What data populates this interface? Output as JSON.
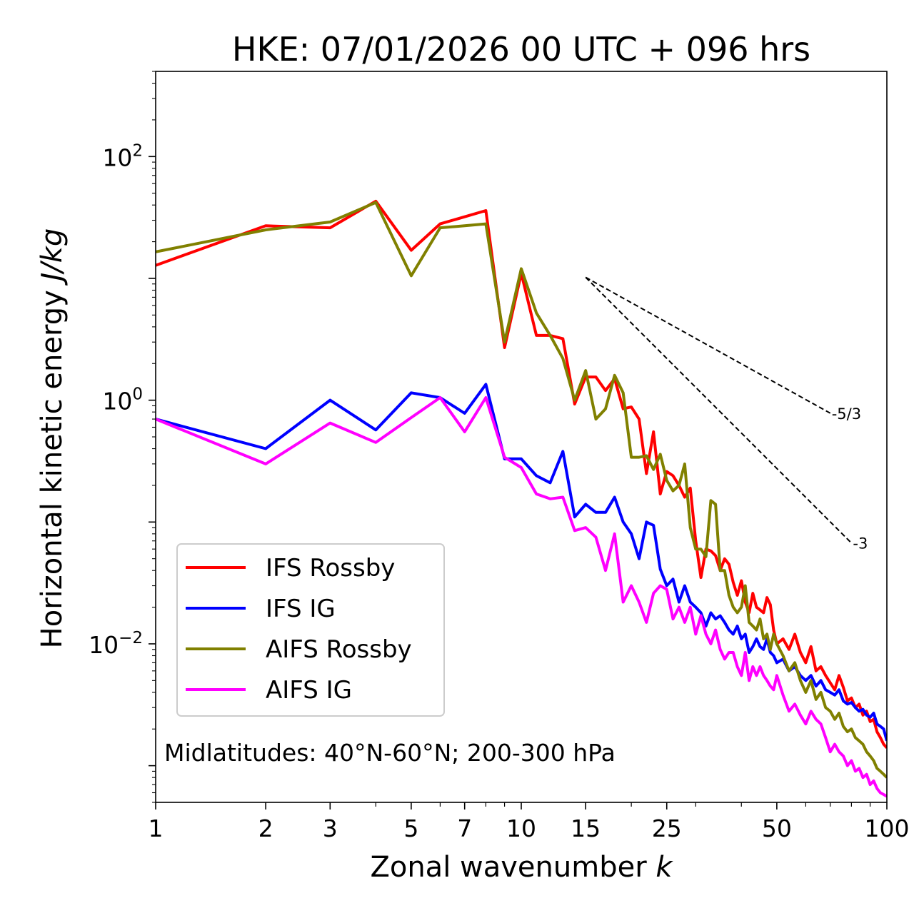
{
  "chart_data": {
    "type": "line",
    "title": "HKE: 07/01/2026 00 UTC + 096 hrs",
    "xlabel": "Zonal wavenumber",
    "xlabel_symbol": "k",
    "ylabel": "Horizontal kinetic energy",
    "ylabel_units": "J/kg",
    "xscale": "log",
    "yscale": "log",
    "xlim": [
      1,
      100
    ],
    "ylim": [
      0.0005,
      500
    ],
    "xticks": [
      {
        "value": 1,
        "label": "1"
      },
      {
        "value": 2,
        "label": "2"
      },
      {
        "value": 3,
        "label": "3"
      },
      {
        "value": 5,
        "label": "5"
      },
      {
        "value": 7,
        "label": "7"
      },
      {
        "value": 10,
        "label": "10"
      },
      {
        "value": 15,
        "label": "15"
      },
      {
        "value": 25,
        "label": "25"
      },
      {
        "value": 50,
        "label": "50"
      },
      {
        "value": 100,
        "label": "100"
      }
    ],
    "yticks": [
      {
        "value": 0.01,
        "label_base": "10",
        "label_exp": "−2"
      },
      {
        "value": 1,
        "label_base": "10",
        "label_exp": "0"
      },
      {
        "value": 100,
        "label_base": "10",
        "label_exp": "2"
      }
    ],
    "annotation": "Midlatitudes: 40°N-60°N; 200-300 hPa",
    "legend_position": "lower-left",
    "reference_slopes": [
      {
        "label": "-5/3",
        "slope": -1.6667,
        "x_start": 15,
        "x_end": 70,
        "y_start": 10.2
      },
      {
        "label": "-3",
        "slope": -3,
        "x_start": 15,
        "x_end": 80,
        "y_start": 10.2
      }
    ],
    "series": [
      {
        "name": "IFS Rossby",
        "color": "#ff0000",
        "x": [
          1,
          2,
          3,
          4,
          5,
          6,
          7,
          8,
          9,
          10,
          11,
          12,
          13,
          14,
          15,
          16,
          17,
          18,
          19,
          20,
          21,
          22,
          23,
          24,
          25,
          26,
          27,
          28,
          29,
          30,
          31,
          32,
          33,
          34,
          35,
          36,
          37,
          38,
          39,
          40,
          41,
          42,
          43,
          44,
          45,
          46,
          47,
          48,
          49,
          50,
          52,
          54,
          56,
          58,
          60,
          62,
          64,
          66,
          68,
          70,
          72,
          74,
          76,
          78,
          80,
          82,
          84,
          86,
          88,
          90,
          92,
          94,
          96,
          98,
          100
        ],
        "values": [
          12.8,
          27,
          26,
          43,
          17,
          28,
          32,
          36,
          2.7,
          11,
          3.4,
          3.4,
          3.2,
          0.93,
          1.55,
          1.55,
          1.2,
          1.5,
          0.85,
          0.88,
          0.7,
          0.25,
          0.55,
          0.17,
          0.26,
          0.24,
          0.2,
          0.16,
          0.19,
          0.07,
          0.035,
          0.06,
          0.058,
          0.053,
          0.04,
          0.05,
          0.045,
          0.032,
          0.025,
          0.033,
          0.022,
          0.018,
          0.026,
          0.02,
          0.019,
          0.018,
          0.024,
          0.021,
          0.013,
          0.01,
          0.011,
          0.009,
          0.012,
          0.0085,
          0.007,
          0.0095,
          0.006,
          0.0065,
          0.0055,
          0.0048,
          0.0042,
          0.0055,
          0.0044,
          0.0034,
          0.0036,
          0.003,
          0.0032,
          0.0026,
          0.0028,
          0.0023,
          0.0024,
          0.0019,
          0.0017,
          0.0015,
          0.0014
        ]
      },
      {
        "name": "IFS IG",
        "color": "#0000ff",
        "x": [
          1,
          2,
          3,
          4,
          5,
          6,
          7,
          8,
          9,
          10,
          11,
          12,
          13,
          14,
          15,
          16,
          17,
          18,
          19,
          20,
          21,
          22,
          23,
          24,
          25,
          26,
          27,
          28,
          29,
          30,
          31,
          32,
          33,
          34,
          35,
          36,
          37,
          38,
          39,
          40,
          41,
          42,
          43,
          44,
          45,
          46,
          47,
          48,
          49,
          50,
          52,
          54,
          56,
          58,
          60,
          62,
          64,
          66,
          68,
          70,
          72,
          74,
          76,
          78,
          80,
          82,
          84,
          86,
          88,
          90,
          92,
          94,
          96,
          98,
          100
        ],
        "values": [
          0.7,
          0.4,
          1.0,
          0.57,
          1.15,
          1.05,
          0.78,
          1.35,
          0.33,
          0.33,
          0.24,
          0.21,
          0.38,
          0.11,
          0.14,
          0.12,
          0.12,
          0.16,
          0.1,
          0.08,
          0.05,
          0.1,
          0.094,
          0.041,
          0.03,
          0.034,
          0.022,
          0.03,
          0.022,
          0.02,
          0.018,
          0.014,
          0.018,
          0.016,
          0.017,
          0.015,
          0.013,
          0.012,
          0.014,
          0.011,
          0.012,
          0.0085,
          0.0095,
          0.011,
          0.0095,
          0.009,
          0.011,
          0.0085,
          0.008,
          0.007,
          0.0075,
          0.006,
          0.0065,
          0.0055,
          0.005,
          0.0055,
          0.0045,
          0.005,
          0.0042,
          0.004,
          0.0038,
          0.0042,
          0.0034,
          0.0032,
          0.0033,
          0.003,
          0.0028,
          0.0029,
          0.0026,
          0.0025,
          0.0027,
          0.0022,
          0.0021,
          0.002,
          0.0016
        ]
      },
      {
        "name": "AIFS Rossby",
        "color": "#808000",
        "x": [
          1,
          2,
          3,
          4,
          5,
          6,
          7,
          8,
          9,
          10,
          11,
          12,
          13,
          14,
          15,
          16,
          17,
          18,
          19,
          20,
          21,
          22,
          23,
          24,
          25,
          26,
          27,
          28,
          29,
          30,
          31,
          32,
          33,
          34,
          35,
          36,
          37,
          38,
          39,
          40,
          41,
          42,
          43,
          44,
          45,
          46,
          47,
          48,
          49,
          50,
          52,
          54,
          56,
          58,
          60,
          62,
          64,
          66,
          68,
          70,
          72,
          74,
          76,
          78,
          80,
          82,
          84,
          86,
          88,
          90,
          92,
          94,
          96,
          98,
          100
        ],
        "values": [
          16.5,
          25,
          29,
          42,
          10.5,
          26,
          27,
          28,
          3,
          12,
          5.2,
          3.4,
          2.2,
          1.0,
          1.75,
          0.7,
          0.85,
          1.6,
          1.15,
          0.34,
          0.34,
          0.35,
          0.27,
          0.36,
          0.22,
          0.18,
          0.2,
          0.3,
          0.09,
          0.06,
          0.06,
          0.052,
          0.15,
          0.14,
          0.04,
          0.04,
          0.025,
          0.02,
          0.018,
          0.02,
          0.03,
          0.015,
          0.014,
          0.013,
          0.016,
          0.011,
          0.012,
          0.009,
          0.012,
          0.01,
          0.008,
          0.006,
          0.007,
          0.005,
          0.004,
          0.005,
          0.0035,
          0.004,
          0.003,
          0.0028,
          0.0024,
          0.0027,
          0.0021,
          0.0019,
          0.002,
          0.0017,
          0.0016,
          0.0015,
          0.0013,
          0.0012,
          0.0011,
          0.00095,
          0.0009,
          0.00085,
          0.0008
        ]
      },
      {
        "name": "AIFS IG",
        "color": "#ff00ff",
        "x": [
          1,
          2,
          3,
          4,
          5,
          6,
          7,
          8,
          9,
          10,
          11,
          12,
          13,
          14,
          15,
          16,
          17,
          18,
          19,
          20,
          21,
          22,
          23,
          24,
          25,
          26,
          27,
          28,
          29,
          30,
          31,
          32,
          33,
          34,
          35,
          36,
          37,
          38,
          39,
          40,
          41,
          42,
          43,
          44,
          45,
          46,
          47,
          48,
          49,
          50,
          52,
          54,
          56,
          58,
          60,
          62,
          64,
          66,
          68,
          70,
          72,
          74,
          76,
          78,
          80,
          82,
          84,
          86,
          88,
          90,
          92,
          94,
          96,
          98,
          100
        ],
        "values": [
          0.7,
          0.3,
          0.65,
          0.45,
          0.72,
          1.05,
          0.55,
          1.05,
          0.34,
          0.28,
          0.17,
          0.155,
          0.16,
          0.085,
          0.09,
          0.075,
          0.04,
          0.08,
          0.022,
          0.03,
          0.022,
          0.015,
          0.026,
          0.03,
          0.028,
          0.016,
          0.02,
          0.015,
          0.02,
          0.012,
          0.017,
          0.012,
          0.01,
          0.013,
          0.009,
          0.0075,
          0.0085,
          0.0085,
          0.0065,
          0.0055,
          0.0085,
          0.005,
          0.0065,
          0.0055,
          0.0065,
          0.0055,
          0.005,
          0.0045,
          0.0042,
          0.0055,
          0.0038,
          0.0028,
          0.0032,
          0.0026,
          0.0022,
          0.0028,
          0.0024,
          0.0022,
          0.0017,
          0.0013,
          0.0015,
          0.0013,
          0.0012,
          0.001,
          0.0011,
          0.0009,
          0.00095,
          0.0008,
          0.00085,
          0.0007,
          0.00075,
          0.00065,
          0.0006,
          0.00058,
          0.00056
        ]
      }
    ]
  }
}
